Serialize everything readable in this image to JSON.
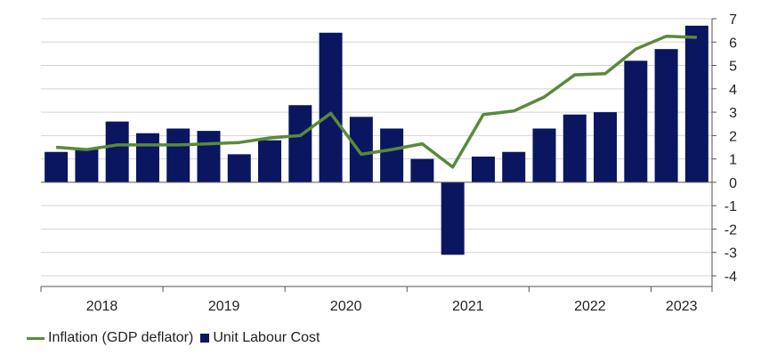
{
  "chart_data": {
    "type": "bar",
    "x": [
      "2018Q1",
      "2018Q2",
      "2018Q3",
      "2018Q4",
      "2019Q1",
      "2019Q2",
      "2019Q3",
      "2019Q4",
      "2020Q1",
      "2020Q2",
      "2020Q3",
      "2020Q4",
      "2021Q1",
      "2021Q2",
      "2021Q3",
      "2021Q4",
      "2022Q1",
      "2022Q2",
      "2022Q3",
      "2022Q4",
      "2023Q1",
      "2023Q2"
    ],
    "year_labels": [
      "2018",
      "2019",
      "2020",
      "2021",
      "2022",
      "2023"
    ],
    "series": [
      {
        "name": "Unit Labour Cost",
        "type": "bar",
        "color": "#0b1660",
        "values": [
          1.3,
          1.4,
          2.6,
          2.1,
          2.3,
          2.2,
          1.2,
          1.8,
          3.3,
          6.4,
          2.8,
          2.3,
          1.0,
          -3.1,
          1.1,
          1.3,
          2.3,
          2.9,
          3.0,
          5.2,
          5.7,
          6.7
        ]
      },
      {
        "name": "Inflation (GDP deflator)",
        "type": "line",
        "color": "#5a8a3a",
        "values": [
          1.5,
          1.4,
          1.6,
          1.6,
          1.6,
          1.65,
          1.7,
          1.9,
          2.0,
          2.95,
          1.2,
          1.4,
          1.65,
          0.65,
          2.9,
          3.05,
          3.65,
          4.6,
          4.65,
          5.7,
          6.25,
          6.2
        ]
      }
    ],
    "ylim": [
      -4,
      7
    ],
    "yticks": [
      -4,
      -3,
      -2,
      -1,
      0,
      1,
      2,
      3,
      4,
      5,
      6,
      7
    ],
    "grid": "horizontal",
    "y_axis_side": "right",
    "legend": "bottom-left"
  }
}
